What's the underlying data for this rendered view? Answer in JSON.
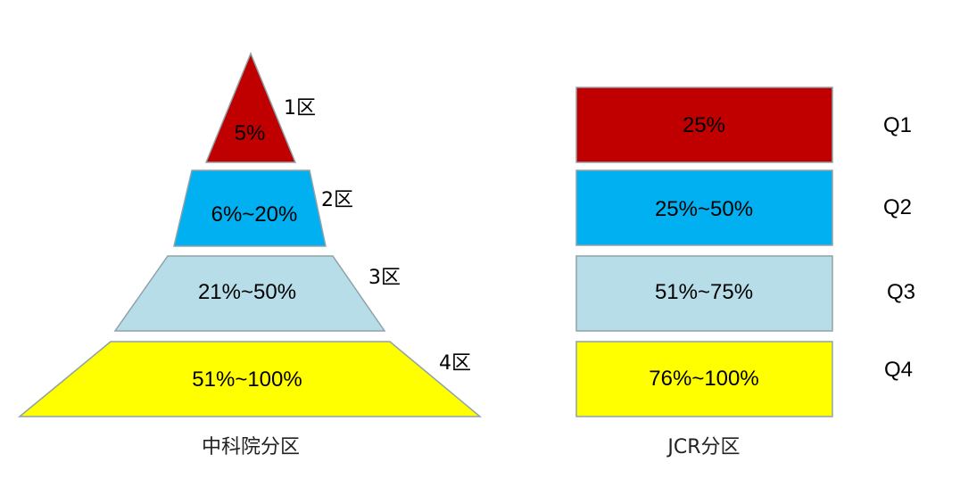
{
  "pyramid": {
    "caption": "中科院分区",
    "tiers": [
      {
        "label": "1区",
        "range": "5%",
        "color": "#c00000"
      },
      {
        "label": "2区",
        "range": "6%~20%",
        "color": "#00b0f0"
      },
      {
        "label": "3区",
        "range": "21%~50%",
        "color": "#b7dee8"
      },
      {
        "label": "4区",
        "range": "51%~100%",
        "color": "#ffff00"
      }
    ]
  },
  "jcr": {
    "caption": "JCR分区",
    "quartiles": [
      {
        "label": "Q1",
        "range": "25%",
        "color": "#c00000"
      },
      {
        "label": "Q2",
        "range": "25%~50%",
        "color": "#00b0f0"
      },
      {
        "label": "Q3",
        "range": "51%~75%",
        "color": "#b7dee8"
      },
      {
        "label": "Q4",
        "range": "76%~100%",
        "color": "#ffff00"
      }
    ]
  },
  "outline_color": "#8fa2a8"
}
